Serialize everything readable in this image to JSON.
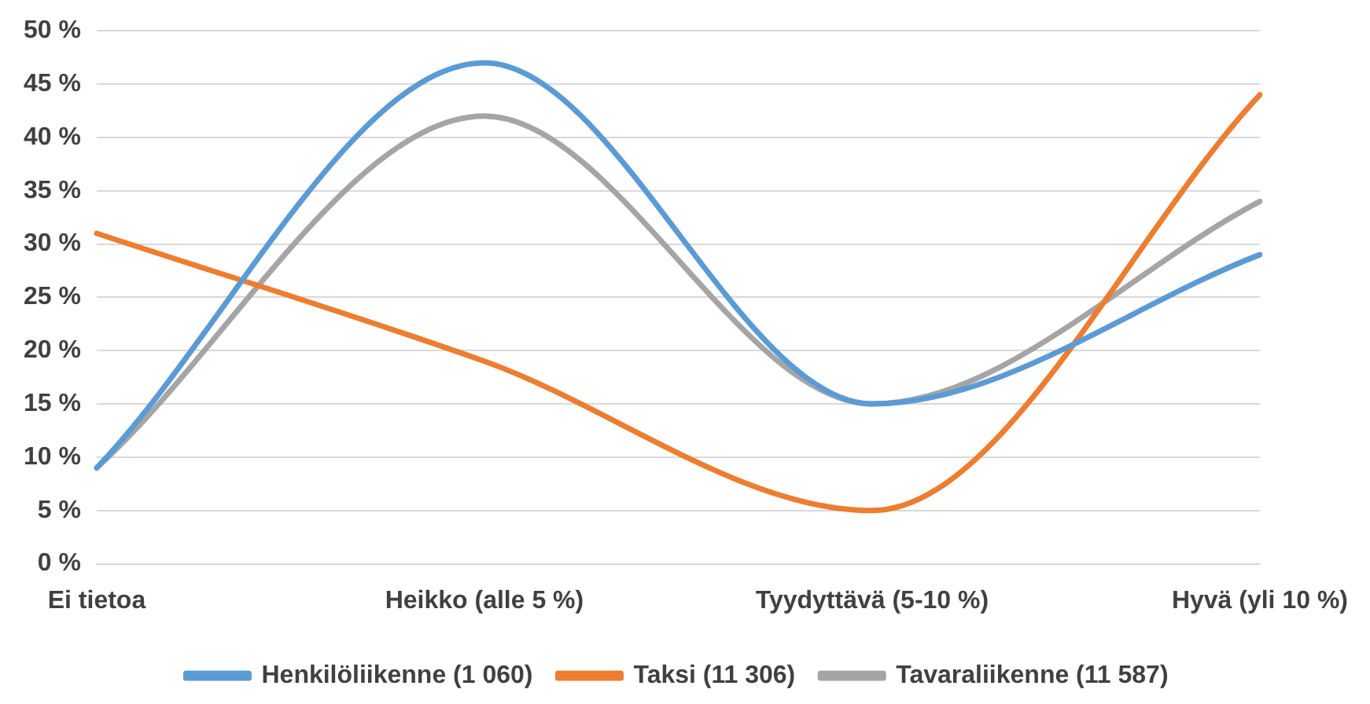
{
  "chart_data": {
    "type": "line",
    "categories": [
      "Ei tietoa",
      "Heikko (alle 5 %)",
      "Tyydyttävä (5-10 %)",
      "Hyvä (yli 10 %)"
    ],
    "series": [
      {
        "name": "Henkilöliikenne (1 060)",
        "color": "#5b9bd5",
        "values": [
          9,
          47,
          15,
          29
        ]
      },
      {
        "name": "Taksi (11 306)",
        "color": "#ed7d31",
        "values": [
          31,
          19,
          5,
          44
        ]
      },
      {
        "name": "Tavaraliikenne (11 587)",
        "color": "#a5a5a5",
        "values": [
          9,
          42,
          15,
          34
        ]
      }
    ],
    "ylim": [
      0,
      50
    ],
    "yticks": [
      {
        "value": 0,
        "label": "0 %"
      },
      {
        "value": 5,
        "label": "5 %"
      },
      {
        "value": 10,
        "label": "10 %"
      },
      {
        "value": 15,
        "label": "15 %"
      },
      {
        "value": 20,
        "label": "20 %"
      },
      {
        "value": 25,
        "label": "25 %"
      },
      {
        "value": 30,
        "label": "30 %"
      },
      {
        "value": 35,
        "label": "35 %"
      },
      {
        "value": 40,
        "label": "40 %"
      },
      {
        "value": 45,
        "label": "45 %"
      },
      {
        "value": 50,
        "label": "50 %"
      }
    ],
    "grid": "y",
    "legend": "bottom",
    "marker": "none",
    "line_style": "solid"
  }
}
